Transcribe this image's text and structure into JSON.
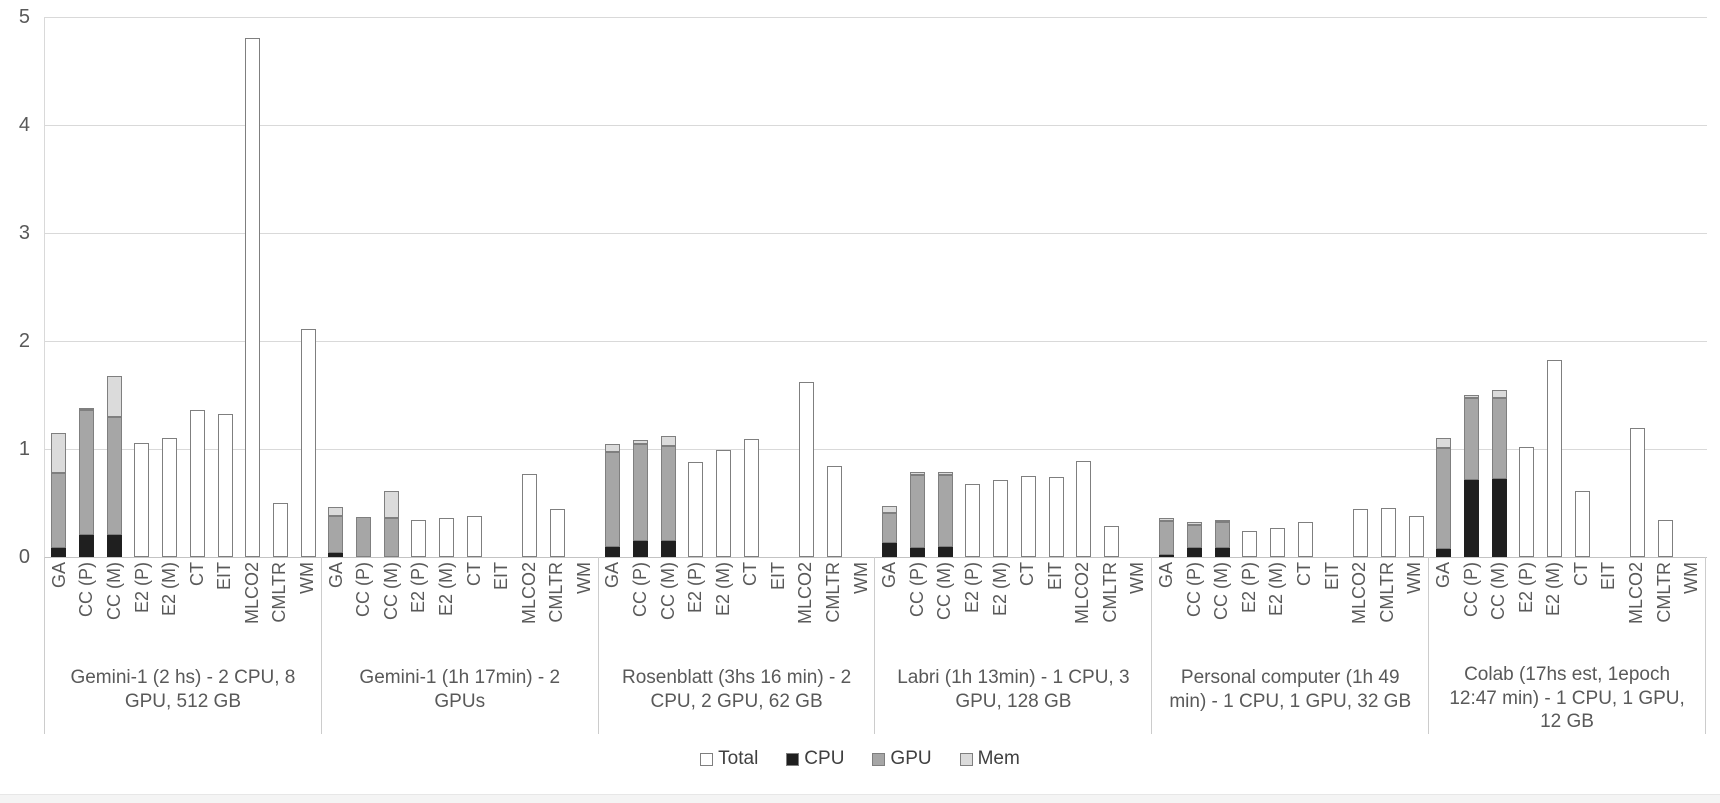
{
  "colors": {
    "total": "#ffffff",
    "cpu": "#1f1f1f",
    "gpu": "#a6a6a6",
    "mem": "#dbdbdb",
    "bar_border": "#7f7f7f",
    "gridline": "#d9d9d9",
    "text": "#595959"
  },
  "legend": [
    {
      "key": "total",
      "label": "Total"
    },
    {
      "key": "cpu",
      "label": "CPU"
    },
    {
      "key": "gpu",
      "label": "GPU"
    },
    {
      "key": "mem",
      "label": "Mem"
    }
  ],
  "chart_data": {
    "type": "bar",
    "subtype": "grouped-with-stacked-segments",
    "title": "",
    "xlabel": "",
    "ylabel": "",
    "ylim": [
      0,
      5
    ],
    "yticks": [
      "0",
      "1",
      "2",
      "3",
      "4",
      "5"
    ],
    "grid": true,
    "legend_position": "bottom",
    "metrics": [
      "GA",
      "CC (P)",
      "CC (M)",
      "E2 (P)",
      "E2 (M)",
      "CT",
      "EIT",
      "MLCO2",
      "CMLTR",
      "WM"
    ],
    "groups": [
      {
        "label": "Gemini-1 (2 hs) - 2 CPU, 8 GPU, 512 GB",
        "bars": [
          {
            "cpu": 0.08,
            "gpu": 0.7,
            "mem": 0.37
          },
          {
            "cpu": 0.2,
            "gpu": 1.16,
            "mem": 0.02
          },
          {
            "cpu": 0.2,
            "gpu": 1.1,
            "mem": 0.38
          },
          {
            "total": 1.06
          },
          {
            "total": 1.1
          },
          {
            "total": 1.36
          },
          {
            "total": 1.32
          },
          {
            "total": 4.81
          },
          {
            "total": 0.5
          },
          {
            "total": 2.11
          }
        ]
      },
      {
        "label": "Gemini-1 (1h 17min) - 2 GPUs",
        "bars": [
          {
            "cpu": 0.04,
            "gpu": 0.34,
            "mem": 0.08
          },
          {
            "cpu": 0,
            "gpu": 0.37,
            "mem": 0
          },
          {
            "cpu": 0,
            "gpu": 0.36,
            "mem": 0.25
          },
          {
            "total": 0.34
          },
          {
            "total": 0.36
          },
          {
            "total": 0.38
          },
          null,
          {
            "total": 0.77
          },
          {
            "total": 0.44
          },
          null
        ]
      },
      {
        "label": "Rosenblatt (3hs 16 min) - 2 CPU, 2 GPU, 62 GB",
        "bars": [
          {
            "cpu": 0.09,
            "gpu": 0.88,
            "mem": 0.08
          },
          {
            "cpu": 0.15,
            "gpu": 0.9,
            "mem": 0.03
          },
          {
            "cpu": 0.15,
            "gpu": 0.88,
            "mem": 0.09
          },
          {
            "total": 0.88
          },
          {
            "total": 0.99
          },
          {
            "total": 1.09
          },
          null,
          {
            "total": 1.62
          },
          {
            "total": 0.84
          },
          null
        ]
      },
      {
        "label": "Labri (1h 13min) - 1 CPU, 3 GPU, 128 GB",
        "bars": [
          {
            "cpu": 0.13,
            "gpu": 0.28,
            "mem": 0.06
          },
          {
            "cpu": 0.08,
            "gpu": 0.68,
            "mem": 0.03
          },
          {
            "cpu": 0.09,
            "gpu": 0.67,
            "mem": 0.03
          },
          {
            "total": 0.68
          },
          {
            "total": 0.71
          },
          {
            "total": 0.75
          },
          {
            "total": 0.74
          },
          {
            "total": 0.89
          },
          {
            "total": 0.29
          },
          null
        ]
      },
      {
        "label": "Personal computer (1h 49 min) - 1 CPU, 1 GPU, 32 GB",
        "bars": [
          {
            "cpu": 0.02,
            "gpu": 0.31,
            "mem": 0.03
          },
          {
            "cpu": 0.08,
            "gpu": 0.22,
            "mem": 0.02
          },
          {
            "cpu": 0.08,
            "gpu": 0.24,
            "mem": 0.02
          },
          {
            "total": 0.24
          },
          {
            "total": 0.27
          },
          {
            "total": 0.32
          },
          null,
          {
            "total": 0.44
          },
          {
            "total": 0.45
          },
          {
            "total": 0.38
          }
        ]
      },
      {
        "label": "Colab (17hs est, 1epoch 12:47 min) - 1 CPU, 1 GPU, 12 GB",
        "bars": [
          {
            "cpu": 0.07,
            "gpu": 0.94,
            "mem": 0.09
          },
          {
            "cpu": 0.71,
            "gpu": 0.76,
            "mem": 0.03
          },
          {
            "cpu": 0.72,
            "gpu": 0.75,
            "mem": 0.08
          },
          {
            "total": 1.02
          },
          {
            "total": 1.82
          },
          {
            "total": 0.61
          },
          null,
          {
            "total": 1.19
          },
          {
            "total": 0.34
          },
          null
        ]
      }
    ]
  }
}
